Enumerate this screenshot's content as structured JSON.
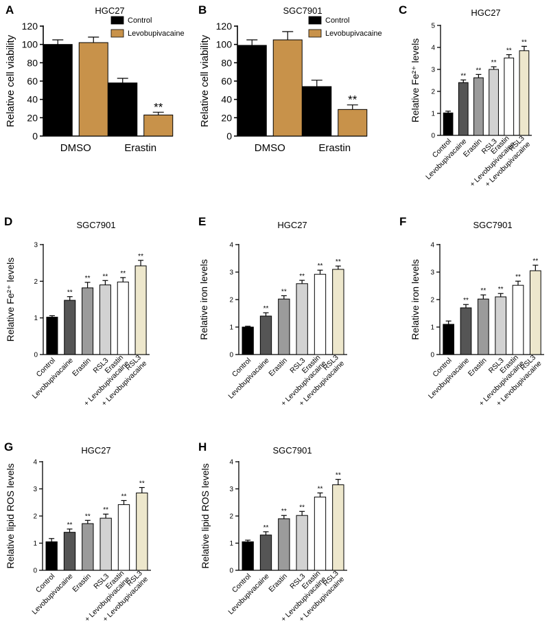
{
  "chart_data": [
    {
      "panel": "A",
      "type": "bar",
      "title": "HGC27",
      "ylabel": "Relative cell viability",
      "ylim": [
        0,
        120
      ],
      "yticks": [
        0,
        20,
        40,
        60,
        80,
        100,
        120
      ],
      "categories": [
        "DMSO",
        "Erastin"
      ],
      "series": [
        {
          "name": "Control",
          "color": "#000000",
          "values": [
            100,
            58
          ],
          "errors": [
            5,
            5
          ],
          "labels": [
            "",
            ""
          ]
        },
        {
          "name": "Levobupivacaine",
          "color": "#c8924a",
          "values": [
            102,
            23
          ],
          "errors": [
            6,
            3
          ],
          "labels": [
            "",
            "**"
          ]
        }
      ]
    },
    {
      "panel": "B",
      "type": "bar",
      "title": "SGC7901",
      "ylabel": "Relative cell viability",
      "ylim": [
        0,
        120
      ],
      "yticks": [
        0,
        20,
        40,
        60,
        80,
        100,
        120
      ],
      "categories": [
        "DMSO",
        "Erastin"
      ],
      "series": [
        {
          "name": "Control",
          "color": "#000000",
          "values": [
            99,
            54
          ],
          "errors": [
            6,
            7
          ],
          "labels": [
            "",
            ""
          ]
        },
        {
          "name": "Levobupivacaine",
          "color": "#c8924a",
          "values": [
            105,
            29
          ],
          "errors": [
            9,
            5
          ],
          "labels": [
            "",
            "**"
          ]
        }
      ]
    },
    {
      "panel": "C",
      "type": "bar",
      "title": "HGC27",
      "ylabel": "Relative Fe²⁺ levels",
      "ylim": [
        0,
        5
      ],
      "yticks": [
        0,
        1,
        2,
        3,
        4,
        5
      ],
      "categories": [
        "Control",
        "Levobupivacaine",
        "Erastin",
        "RSL3",
        "Erastin\n+ Levobupivacaine",
        "RSL3\n+ Levobupivacaine"
      ],
      "values": [
        1.02,
        2.4,
        2.62,
        3.0,
        3.52,
        3.85
      ],
      "errors": [
        0.08,
        0.12,
        0.15,
        0.12,
        0.15,
        0.2
      ],
      "labels": [
        "",
        "**",
        "**",
        "**",
        "**",
        "**"
      ],
      "colors": [
        "#000000",
        "#555555",
        "#9b9b9b",
        "#d2d2d2",
        "#ffffff",
        "#ede7cc"
      ]
    },
    {
      "panel": "D",
      "type": "bar",
      "title": "SGC7901",
      "ylabel": "Relative Fe²⁺ levels",
      "ylim": [
        0,
        3
      ],
      "yticks": [
        0,
        1,
        2,
        3
      ],
      "categories": [
        "Control",
        "Levobupivacaine",
        "Erastin",
        "RSL3",
        "Erastin\n+ Levobupivacaine",
        "RSL3\n+ Levobupivacaine"
      ],
      "values": [
        1.02,
        1.48,
        1.82,
        1.9,
        1.98,
        2.42
      ],
      "errors": [
        0.04,
        0.1,
        0.15,
        0.12,
        0.12,
        0.15
      ],
      "labels": [
        "",
        "**",
        "**",
        "**",
        "**",
        "**"
      ],
      "colors": [
        "#000000",
        "#555555",
        "#9b9b9b",
        "#d2d2d2",
        "#ffffff",
        "#ede7cc"
      ]
    },
    {
      "panel": "E",
      "type": "bar",
      "title": "HGC27",
      "ylabel": "Relative iron levels",
      "ylim": [
        0,
        4
      ],
      "yticks": [
        0,
        1,
        2,
        3,
        4
      ],
      "categories": [
        "Control",
        "Levobupivacaine",
        "Erastin",
        "RSL3",
        "Erastin\n+ Levobupivacaine",
        "RSL3\n+ Levobupivacaine"
      ],
      "values": [
        1.0,
        1.4,
        2.02,
        2.58,
        2.92,
        3.1
      ],
      "errors": [
        0.03,
        0.12,
        0.12,
        0.12,
        0.15,
        0.12
      ],
      "labels": [
        "",
        "**",
        "**",
        "**",
        "**",
        "**"
      ],
      "colors": [
        "#000000",
        "#555555",
        "#9b9b9b",
        "#d2d2d2",
        "#ffffff",
        "#ede7cc"
      ]
    },
    {
      "panel": "F",
      "type": "bar",
      "title": "SGC7901",
      "ylabel": "Relative iron levels",
      "ylim": [
        0,
        4
      ],
      "yticks": [
        0,
        1,
        2,
        3,
        4
      ],
      "categories": [
        "Control",
        "Levobupivacaine",
        "Erastin",
        "RSL3",
        "Erastin\n+ Levobupivacaine",
        "RSL3\n+ Levobupivacaine"
      ],
      "values": [
        1.1,
        1.7,
        2.02,
        2.1,
        2.52,
        3.05
      ],
      "errors": [
        0.12,
        0.12,
        0.15,
        0.12,
        0.15,
        0.2
      ],
      "labels": [
        "",
        "**",
        "**",
        "**",
        "**",
        "**"
      ],
      "colors": [
        "#000000",
        "#555555",
        "#9b9b9b",
        "#d2d2d2",
        "#ffffff",
        "#ede7cc"
      ]
    },
    {
      "panel": "G",
      "type": "bar",
      "title": "HGC27",
      "ylabel": "Relative lipid ROS levels",
      "ylim": [
        0,
        4
      ],
      "yticks": [
        0,
        1,
        2,
        3,
        4
      ],
      "categories": [
        "Control",
        "Levobupivacaine",
        "Erastin",
        "RSL3",
        "Erastin\n+ Levobupivacaine",
        "RSL3\n+ Levobupivacaine"
      ],
      "values": [
        1.05,
        1.4,
        1.72,
        1.92,
        2.42,
        2.85
      ],
      "errors": [
        0.12,
        0.12,
        0.12,
        0.15,
        0.15,
        0.2
      ],
      "labels": [
        "",
        "**",
        "**",
        "**",
        "**",
        "**"
      ],
      "colors": [
        "#000000",
        "#555555",
        "#9b9b9b",
        "#d2d2d2",
        "#ffffff",
        "#ede7cc"
      ]
    },
    {
      "panel": "H",
      "type": "bar",
      "title": "SGC7901",
      "ylabel": "Relative lipid ROS levels",
      "ylim": [
        0,
        4
      ],
      "yticks": [
        0,
        1,
        2,
        3,
        4
      ],
      "categories": [
        "Control",
        "Levobupivacaine",
        "Erastin",
        "RSL3",
        "Erastin\n+ Levobupivacaine",
        "RSL3\n+ Levobupivacaine"
      ],
      "values": [
        1.05,
        1.3,
        1.9,
        2.02,
        2.7,
        3.15
      ],
      "errors": [
        0.06,
        0.12,
        0.12,
        0.15,
        0.15,
        0.2
      ],
      "labels": [
        "",
        "**",
        "**",
        "**",
        "**",
        "**"
      ],
      "colors": [
        "#000000",
        "#555555",
        "#9b9b9b",
        "#d2d2d2",
        "#ffffff",
        "#ede7cc"
      ]
    }
  ]
}
